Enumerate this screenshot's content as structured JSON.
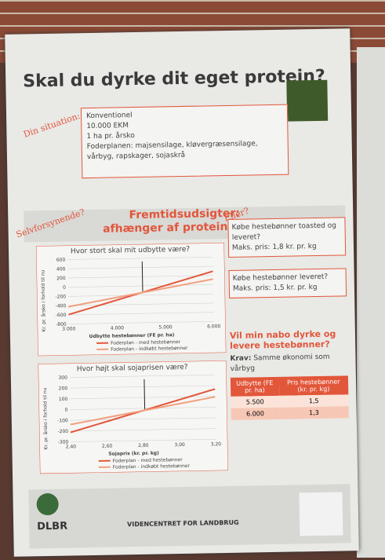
{
  "title": "Skal du dyrke dit eget protein?",
  "situation": {
    "label": "Din situation:",
    "items": [
      "Konventionel",
      "10.000 EKM",
      "1 ha pr. årsko",
      "Foderplanen: majsensilage, kløvergræsensilage, vårbyg, rapskager, sojaskrå"
    ]
  },
  "side_tag": "Selvforsynende?",
  "band": {
    "line1": "Fremtidsudsigter:",
    "line2": "afhænger af proteinprisen"
  },
  "chart1": {
    "title": "Hvor stort skal mit udbytte være?",
    "ylabel": "Kr. pr. årsko i forhold til nu",
    "yticks": [
      "600",
      "400",
      "200",
      "0",
      "-200",
      "-400",
      "-600",
      "-800"
    ],
    "xticks": [
      "3.000",
      "4.000",
      "5.000",
      "6.000"
    ],
    "xlabel": "Udbytte hestebønner (FE pr. ha)",
    "legend": [
      "Foderplan - med hestebønner",
      "Foderplan - indkøbt hestebønner"
    ]
  },
  "chart2": {
    "title": "Hvor højt skal sojaprisen være?",
    "ylabel": "Kr. pr. årsko i forhold til nu",
    "yticks": [
      "300",
      "200",
      "100",
      "0",
      "-100",
      "-200",
      "-300"
    ],
    "xticks": [
      "2,40",
      "2,60",
      "2,80",
      "3,00",
      "3,20"
    ],
    "xlabel": "Sojapris (kr. pr. kg)",
    "legend": [
      "Foderplan - med hestebønner",
      "Foderplan - indkøbt hestebønner"
    ]
  },
  "alt": {
    "tag": "Eller?",
    "box1": [
      "Købe hestebønner toasted og leveret?",
      "Maks. pris: 1,8 kr. pr. kg"
    ],
    "box2": [
      "Købe hestebønner leveret?",
      "Maks. pris: 1,5 kr. pr. kg"
    ]
  },
  "neighbour": {
    "title": "Vil min nabo dyrke og levere hestebønner?",
    "req_label": "Krav:",
    "req": "Samme økonomi som vårbyg",
    "table": {
      "header": [
        "Udbytte (FE pr. ha)",
        "Pris hestebønner (kr. pr. kg)"
      ],
      "rows": [
        [
          "5.500",
          "1,5"
        ],
        [
          "6.000",
          "1,3"
        ]
      ]
    }
  },
  "footer": {
    "logo1": "DLBR",
    "logo2": "VIDENCENTRET FOR LANDBRUG"
  }
}
